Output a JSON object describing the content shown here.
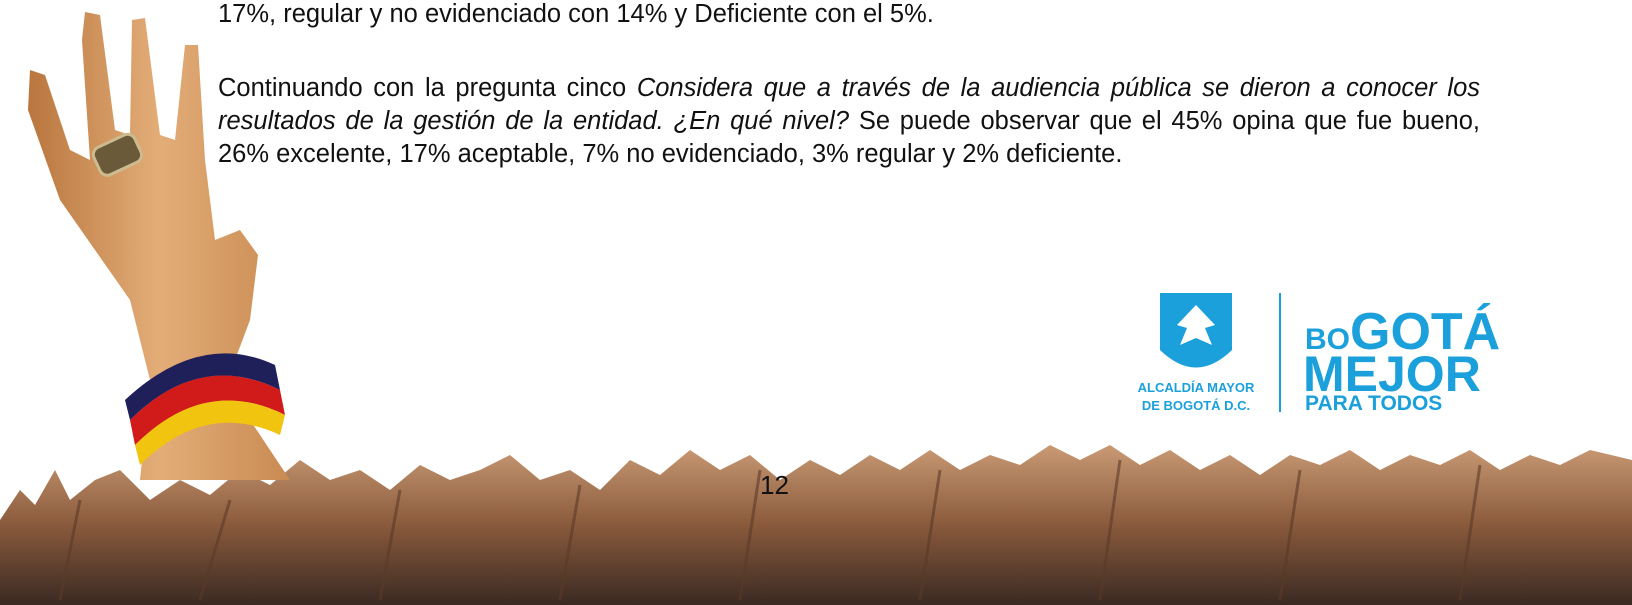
{
  "document": {
    "paragraphs": [
      {
        "segments": [
          {
            "text": "17%, regular y no evidenciado con 14% y Deficiente con el 5%.",
            "italic": false
          }
        ]
      },
      {
        "segments": [
          {
            "text": "Continuando con la pregunta cinco ",
            "italic": false
          },
          {
            "text": "Considera que a través de la audiencia pública se dieron a conocer los resultados de la gestión de la entidad. ¿En qué nivel?",
            "italic": true
          },
          {
            "text": " Se puede observar que el 45% opina que fue bueno, 26% excelente, 17% aceptable, 7% no evidenciado, 3% regular y 2% deficiente.",
            "italic": false
          }
        ]
      }
    ],
    "page_number": "12",
    "logo": {
      "alcaldia_line1": "ALCALDÍA MAYOR",
      "alcaldia_line2": "DE BOGOTÁ D.C.",
      "bogota_small": "BO",
      "bogota_big": "GOTÁ",
      "mejor": "MEJOR",
      "para_todos": "PARA TODOS"
    }
  }
}
